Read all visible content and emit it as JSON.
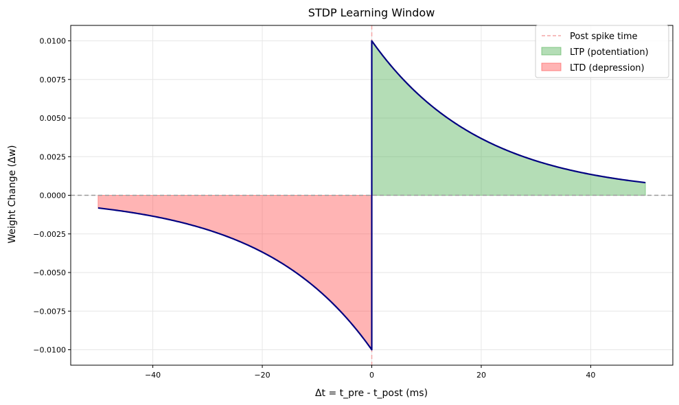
{
  "chart_data": {
    "type": "line",
    "title": "STDP Learning Window",
    "xlabel": "Δt = t_pre - t_post (ms)",
    "ylabel": "Weight Change (Δw)",
    "xlim": [
      -55,
      55
    ],
    "ylim": [
      -0.011,
      0.011
    ],
    "xticks": [
      -40,
      -20,
      0,
      20,
      40
    ],
    "yticks": [
      -0.01,
      -0.0075,
      -0.005,
      -0.0025,
      0.0,
      0.0025,
      0.005,
      0.0075,
      0.01
    ],
    "xtick_labels": [
      "−40",
      "−20",
      "0",
      "20",
      "40"
    ],
    "ytick_labels": [
      "−0.0100",
      "−0.0075",
      "−0.0050",
      "−0.0025",
      "0.0000",
      "0.0025",
      "0.0050",
      "0.0075",
      "0.0100"
    ],
    "grid": true,
    "legend_placement": "top-right",
    "curve": {
      "color": "#000080",
      "x_range": [
        -50,
        50
      ],
      "A_plus": 0.01,
      "A_minus": 0.01,
      "tau_plus": 20,
      "tau_minus": 20
    },
    "reference_lines": [
      {
        "orientation": "vertical",
        "value": 0,
        "color": "#f4a6a6",
        "style": "dashed",
        "label": "Post spike time"
      },
      {
        "orientation": "horizontal",
        "value": 0,
        "color": "#999999",
        "style": "dashed"
      }
    ],
    "fills": [
      {
        "label": "LTP (potentiation)",
        "region": "positive",
        "color": "#4caf50",
        "opacity": 0.42
      },
      {
        "label": "LTD (depression)",
        "region": "negative",
        "color": "#ff4d4d",
        "opacity": 0.42
      }
    ],
    "legend": [
      {
        "label": "Post spike time",
        "kind": "dashed-line",
        "color": "#f4a6a6"
      },
      {
        "label": "LTP (potentiation)",
        "kind": "patch",
        "color": "#4caf50"
      },
      {
        "label": "LTD (depression)",
        "kind": "patch",
        "color": "#ff4d4d"
      }
    ]
  }
}
